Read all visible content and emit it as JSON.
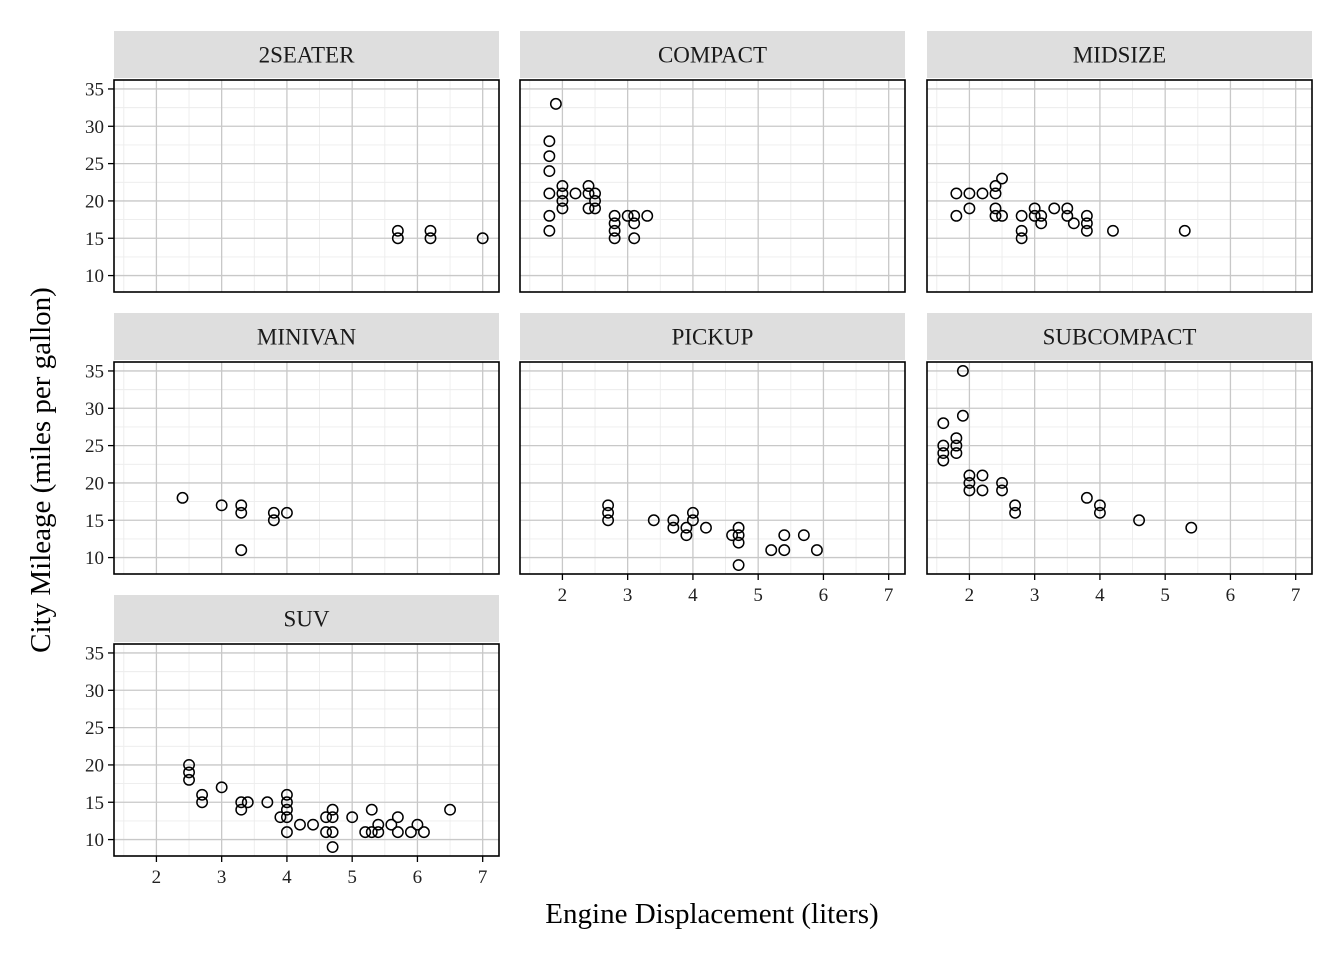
{
  "chart_data": {
    "type": "scatter",
    "xlabel": "Engine Displacement (liters)",
    "ylabel": "City Mileage (miles per gallon)",
    "xlim": [
      1.35,
      7.25
    ],
    "ylim": [
      7.8,
      36.2
    ],
    "x_ticks": [
      2,
      3,
      4,
      5,
      6,
      7
    ],
    "y_ticks": [
      10,
      15,
      20,
      25,
      30,
      35
    ],
    "grid": true,
    "facet_layout": "3 columns x 3 rows",
    "panels": [
      {
        "name": "2SEATER",
        "points": [
          [
            5.7,
            16
          ],
          [
            5.7,
            15
          ],
          [
            6.2,
            16
          ],
          [
            6.2,
            15
          ],
          [
            7.0,
            15
          ]
        ]
      },
      {
        "name": "COMPACT",
        "points": [
          [
            1.8,
            28
          ],
          [
            1.8,
            26
          ],
          [
            1.8,
            24
          ],
          [
            1.8,
            21
          ],
          [
            1.8,
            18
          ],
          [
            1.8,
            16
          ],
          [
            1.9,
            33
          ],
          [
            2.0,
            22
          ],
          [
            2.0,
            21
          ],
          [
            2.0,
            20
          ],
          [
            2.0,
            19
          ],
          [
            2.2,
            21
          ],
          [
            2.4,
            22
          ],
          [
            2.4,
            21
          ],
          [
            2.4,
            19
          ],
          [
            2.5,
            21
          ],
          [
            2.5,
            20
          ],
          [
            2.5,
            19
          ],
          [
            2.8,
            18
          ],
          [
            2.8,
            17
          ],
          [
            2.8,
            16
          ],
          [
            2.8,
            15
          ],
          [
            3.0,
            18
          ],
          [
            3.1,
            18
          ],
          [
            3.1,
            17
          ],
          [
            3.1,
            15
          ],
          [
            3.3,
            18
          ]
        ]
      },
      {
        "name": "MIDSIZE",
        "points": [
          [
            1.8,
            21
          ],
          [
            1.8,
            18
          ],
          [
            2.0,
            21
          ],
          [
            2.0,
            19
          ],
          [
            2.2,
            21
          ],
          [
            2.4,
            22
          ],
          [
            2.4,
            21
          ],
          [
            2.4,
            19
          ],
          [
            2.4,
            18
          ],
          [
            2.5,
            23
          ],
          [
            2.5,
            18
          ],
          [
            2.8,
            18
          ],
          [
            2.8,
            16
          ],
          [
            2.8,
            15
          ],
          [
            3.0,
            19
          ],
          [
            3.0,
            18
          ],
          [
            3.1,
            18
          ],
          [
            3.1,
            17
          ],
          [
            3.3,
            19
          ],
          [
            3.5,
            19
          ],
          [
            3.5,
            18
          ],
          [
            3.6,
            17
          ],
          [
            3.8,
            18
          ],
          [
            3.8,
            17
          ],
          [
            3.8,
            16
          ],
          [
            4.2,
            16
          ],
          [
            5.3,
            16
          ]
        ]
      },
      {
        "name": "MINIVAN",
        "points": [
          [
            2.4,
            18
          ],
          [
            3.0,
            17
          ],
          [
            3.3,
            17
          ],
          [
            3.3,
            16
          ],
          [
            3.3,
            11
          ],
          [
            3.8,
            16
          ],
          [
            3.8,
            15
          ],
          [
            4.0,
            16
          ]
        ]
      },
      {
        "name": "PICKUP",
        "points": [
          [
            2.7,
            17
          ],
          [
            2.7,
            16
          ],
          [
            2.7,
            15
          ],
          [
            3.4,
            15
          ],
          [
            3.7,
            15
          ],
          [
            3.7,
            14
          ],
          [
            3.9,
            14
          ],
          [
            3.9,
            13
          ],
          [
            4.0,
            16
          ],
          [
            4.0,
            15
          ],
          [
            4.2,
            14
          ],
          [
            4.6,
            13
          ],
          [
            4.7,
            14
          ],
          [
            4.7,
            13
          ],
          [
            4.7,
            12
          ],
          [
            4.7,
            9
          ],
          [
            5.2,
            11
          ],
          [
            5.4,
            13
          ],
          [
            5.4,
            11
          ],
          [
            5.7,
            13
          ],
          [
            5.9,
            11
          ]
        ]
      },
      {
        "name": "SUBCOMPACT",
        "points": [
          [
            1.6,
            28
          ],
          [
            1.6,
            25
          ],
          [
            1.6,
            24
          ],
          [
            1.6,
            23
          ],
          [
            1.8,
            26
          ],
          [
            1.8,
            25
          ],
          [
            1.8,
            24
          ],
          [
            1.9,
            35
          ],
          [
            1.9,
            29
          ],
          [
            2.0,
            21
          ],
          [
            2.0,
            20
          ],
          [
            2.0,
            19
          ],
          [
            2.2,
            21
          ],
          [
            2.2,
            19
          ],
          [
            2.5,
            20
          ],
          [
            2.5,
            19
          ],
          [
            2.7,
            17
          ],
          [
            2.7,
            16
          ],
          [
            3.8,
            18
          ],
          [
            4.0,
            17
          ],
          [
            4.0,
            16
          ],
          [
            4.6,
            15
          ],
          [
            5.4,
            14
          ]
        ]
      },
      {
        "name": "SUV",
        "points": [
          [
            2.5,
            20
          ],
          [
            2.5,
            19
          ],
          [
            2.5,
            18
          ],
          [
            2.7,
            16
          ],
          [
            2.7,
            15
          ],
          [
            3.0,
            17
          ],
          [
            3.3,
            15
          ],
          [
            3.3,
            14
          ],
          [
            3.4,
            15
          ],
          [
            3.7,
            15
          ],
          [
            3.9,
            13
          ],
          [
            4.0,
            16
          ],
          [
            4.0,
            15
          ],
          [
            4.0,
            14
          ],
          [
            4.0,
            13
          ],
          [
            4.0,
            11
          ],
          [
            4.2,
            12
          ],
          [
            4.4,
            12
          ],
          [
            4.6,
            13
          ],
          [
            4.6,
            11
          ],
          [
            4.7,
            14
          ],
          [
            4.7,
            13
          ],
          [
            4.7,
            11
          ],
          [
            4.7,
            9
          ],
          [
            5.0,
            13
          ],
          [
            5.2,
            11
          ],
          [
            5.3,
            14
          ],
          [
            5.3,
            11
          ],
          [
            5.4,
            12
          ],
          [
            5.4,
            11
          ],
          [
            5.6,
            12
          ],
          [
            5.7,
            13
          ],
          [
            5.7,
            11
          ],
          [
            5.9,
            11
          ],
          [
            6.0,
            12
          ],
          [
            6.1,
            11
          ],
          [
            6.5,
            14
          ]
        ]
      }
    ]
  }
}
